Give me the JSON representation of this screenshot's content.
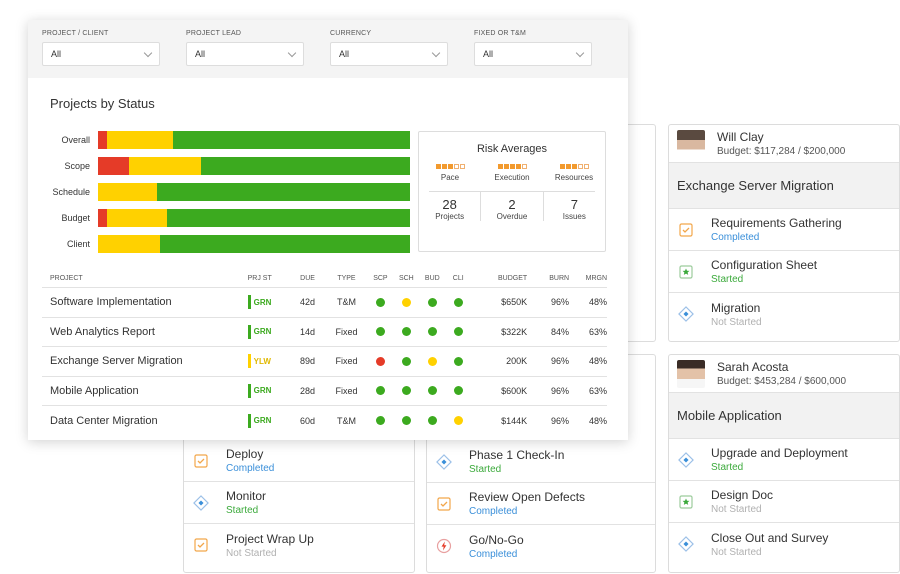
{
  "filters": [
    {
      "label": "PROJECT / CLIENT",
      "value": "All"
    },
    {
      "label": "PROJECT LEAD",
      "value": "All"
    },
    {
      "label": "CURRENCY",
      "value": "All"
    },
    {
      "label": "FIXED OR T&M",
      "value": "All"
    }
  ],
  "projects_by_status": {
    "title": "Projects by Status",
    "rows": [
      {
        "label": "Overall",
        "red": 3,
        "yellow": 21,
        "green": 76
      },
      {
        "label": "Scope",
        "red": 10,
        "yellow": 23,
        "green": 67
      },
      {
        "label": "Schedule",
        "red": 0,
        "yellow": 19,
        "green": 81
      },
      {
        "label": "Budget",
        "red": 3,
        "yellow": 19,
        "green": 78
      },
      {
        "label": "Client",
        "red": 0,
        "yellow": 20,
        "green": 80
      }
    ],
    "colors": {
      "red": "#e53b28",
      "yellow": "#ffd100",
      "green": "#3caa1f"
    }
  },
  "risk": {
    "title": "Risk Averages",
    "metrics": [
      {
        "label": "Pace",
        "filled": 3,
        "total": 5
      },
      {
        "label": "Execution",
        "filled": 4,
        "total": 5
      },
      {
        "label": "Resources",
        "filled": 3,
        "total": 5
      }
    ],
    "counts": [
      {
        "value": "28",
        "label": "Projects"
      },
      {
        "value": "2",
        "label": "Overdue"
      },
      {
        "value": "7",
        "label": "Issues"
      }
    ]
  },
  "table": {
    "headers": [
      "PROJECT",
      "PRJ ST",
      "DUE",
      "TYPE",
      "SCP",
      "SCH",
      "BUD",
      "CLI",
      "BUDGET",
      "BURN",
      "MRGN"
    ],
    "rows": [
      {
        "name": "Software Implementation",
        "st": "GRN",
        "due": "42d",
        "type": "T&M",
        "dots": [
          "g",
          "y",
          "g",
          "g"
        ],
        "budget": "$650K",
        "burn": "96%",
        "mrgn": "48%"
      },
      {
        "name": "Web Analytics Report",
        "st": "GRN",
        "due": "14d",
        "type": "Fixed",
        "dots": [
          "g",
          "g",
          "g",
          "g"
        ],
        "budget": "$322K",
        "burn": "84%",
        "mrgn": "63%"
      },
      {
        "name": "Exchange Server Migration",
        "st": "YLW",
        "due": "89d",
        "type": "Fixed",
        "dots": [
          "r",
          "g",
          "y",
          "g"
        ],
        "budget": "200K",
        "burn": "96%",
        "mrgn": "48%"
      },
      {
        "name": "Mobile Application",
        "st": "GRN",
        "due": "28d",
        "type": "Fixed",
        "dots": [
          "g",
          "g",
          "g",
          "g"
        ],
        "budget": "$600K",
        "burn": "96%",
        "mrgn": "63%"
      },
      {
        "name": "Data Center Migration",
        "st": "GRN",
        "due": "60d",
        "type": "T&M",
        "dots": [
          "g",
          "g",
          "g",
          "y"
        ],
        "budget": "$144K",
        "burn": "96%",
        "mrgn": "48%"
      }
    ]
  },
  "cards": {
    "will_clay": {
      "person": "Will Clay",
      "budget": "Budget: $117,284 / $200,000",
      "project": "Exchange Server Migration",
      "tasks": [
        {
          "name": "Requirements Gathering",
          "status": "Completed",
          "icon": "checklist-icon"
        },
        {
          "name": "Configuration Sheet",
          "status": "Started",
          "icon": "star-doc-icon"
        },
        {
          "name": "Migration",
          "status": "Not Started",
          "icon": "milestone-diamond-icon"
        }
      ]
    },
    "sarah_acosta": {
      "person": "Sarah Acosta",
      "budget": "Budget: $453,284 / $600,000",
      "project": "Mobile Application",
      "tasks": [
        {
          "name": "Upgrade and Deployment",
          "status": "Started",
          "icon": "milestone-diamond-icon"
        },
        {
          "name": "Design Doc",
          "status": "Not Started",
          "icon": "star-doc-icon"
        },
        {
          "name": "Close Out and Survey",
          "status": "Not Started",
          "icon": "milestone-diamond-icon"
        }
      ]
    },
    "left_col": {
      "tasks": [
        {
          "name": "Deploy",
          "status": "Completed",
          "icon": "checklist-icon"
        },
        {
          "name": "Monitor",
          "status": "Started",
          "icon": "milestone-diamond-icon"
        },
        {
          "name": "Project Wrap Up",
          "status": "Not Started",
          "icon": "checklist-icon"
        }
      ]
    },
    "mid_col": {
      "tasks": [
        {
          "name": "Phase 1 Check-In",
          "status": "Started",
          "icon": "milestone-diamond-icon"
        },
        {
          "name": "Review Open Defects",
          "status": "Completed",
          "icon": "checklist-icon"
        },
        {
          "name": "Go/No-Go",
          "status": "Completed",
          "icon": "lightning-icon"
        }
      ]
    }
  }
}
